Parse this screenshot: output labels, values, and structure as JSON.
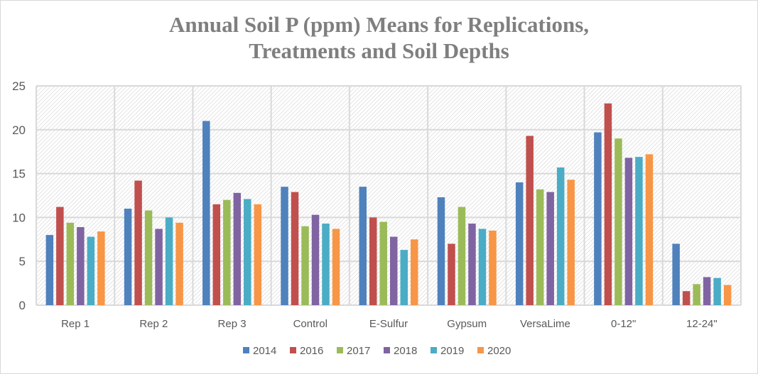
{
  "chart_data": {
    "type": "bar",
    "title_lines": [
      "Annual Soil P (ppm) Means for Replications,",
      "Treatments and Soil Depths"
    ],
    "xlabel": "",
    "ylabel": "",
    "ylim": [
      0,
      25
    ],
    "yticks": [
      0,
      5,
      10,
      15,
      20,
      25
    ],
    "grid": true,
    "legend_position": "bottom",
    "categories": [
      "Rep 1",
      "Rep 2",
      "Rep 3",
      "Control",
      "E-Sulfur",
      "Gypsum",
      "VersaLime",
      "0-12\"",
      "12-24\""
    ],
    "series": [
      {
        "name": "2014",
        "color": "#4f81bd",
        "values": [
          8.0,
          11.0,
          21.0,
          13.5,
          13.5,
          12.3,
          14.0,
          19.7,
          7.0
        ]
      },
      {
        "name": "2016",
        "color": "#c0504d",
        "values": [
          11.2,
          14.2,
          11.5,
          12.9,
          10.0,
          7.0,
          19.3,
          23.0,
          1.6
        ]
      },
      {
        "name": "2017",
        "color": "#9bbb59",
        "values": [
          9.4,
          10.8,
          12.0,
          9.0,
          9.5,
          11.2,
          13.2,
          19.0,
          2.4
        ]
      },
      {
        "name": "2018",
        "color": "#8064a2",
        "values": [
          8.9,
          8.7,
          12.8,
          10.3,
          7.8,
          9.3,
          12.9,
          16.8,
          3.2
        ]
      },
      {
        "name": "2019",
        "color": "#4bacc6",
        "values": [
          7.8,
          10.0,
          12.1,
          9.3,
          6.3,
          8.7,
          15.7,
          16.9,
          3.1
        ]
      },
      {
        "name": "2020",
        "color": "#f79646",
        "values": [
          8.4,
          9.4,
          11.5,
          8.7,
          7.5,
          8.5,
          14.3,
          17.2,
          2.3
        ]
      }
    ]
  }
}
